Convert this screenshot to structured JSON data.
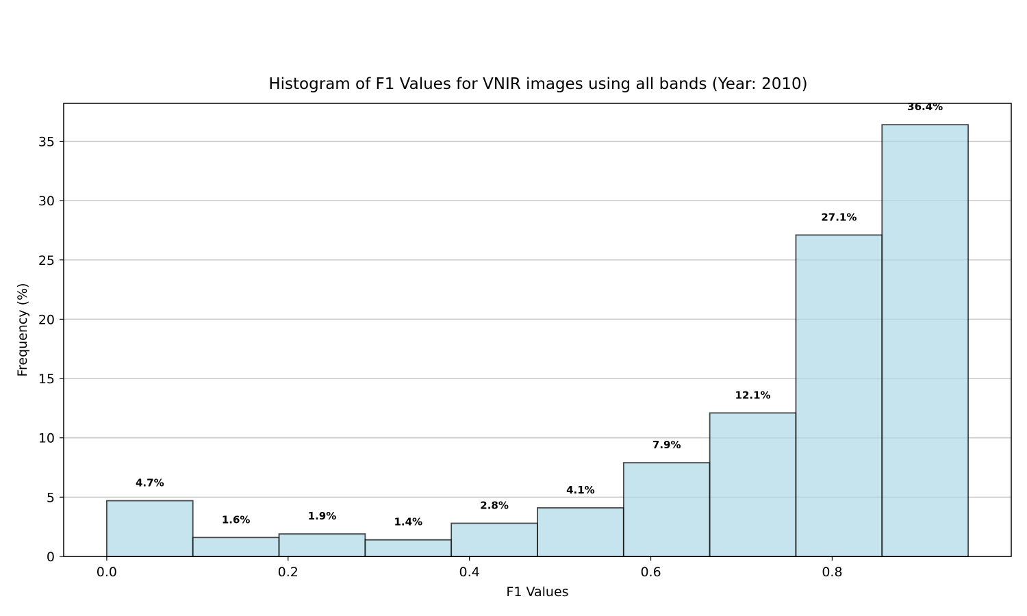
{
  "chart_data": {
    "type": "bar",
    "title": "Histogram of F1 Values for VNIR images using all bands (Year: 2010)",
    "xlabel": "F1 Values",
    "ylabel": "Frequency (%)",
    "bin_width": 0.095,
    "bins": [
      {
        "x_start": 0.0,
        "x_end": 0.095,
        "value": 4.7,
        "label": "4.7%"
      },
      {
        "x_start": 0.095,
        "x_end": 0.19,
        "value": 1.6,
        "label": "1.6%"
      },
      {
        "x_start": 0.19,
        "x_end": 0.285,
        "value": 1.9,
        "label": "1.9%"
      },
      {
        "x_start": 0.285,
        "x_end": 0.38,
        "value": 1.4,
        "label": "1.4%"
      },
      {
        "x_start": 0.38,
        "x_end": 0.475,
        "value": 2.8,
        "label": "2.8%"
      },
      {
        "x_start": 0.475,
        "x_end": 0.57,
        "value": 4.1,
        "label": "4.1%"
      },
      {
        "x_start": 0.57,
        "x_end": 0.665,
        "value": 7.9,
        "label": "7.9%"
      },
      {
        "x_start": 0.665,
        "x_end": 0.76,
        "value": 12.1,
        "label": "12.1%"
      },
      {
        "x_start": 0.76,
        "x_end": 0.855,
        "value": 27.1,
        "label": "27.1%"
      },
      {
        "x_start": 0.855,
        "x_end": 0.95,
        "value": 36.4,
        "label": "36.4%"
      }
    ],
    "x_ticks": [
      "0.0",
      "0.2",
      "0.4",
      "0.6",
      "0.8"
    ],
    "y_ticks": [
      "0",
      "5",
      "10",
      "15",
      "20",
      "25",
      "30",
      "35"
    ],
    "xlim": [
      -0.0475,
      0.9975
    ],
    "ylim": [
      0,
      38.2
    ],
    "grid": "horizontal",
    "bar_color": "#add8e6",
    "edge_color": "#000000"
  }
}
